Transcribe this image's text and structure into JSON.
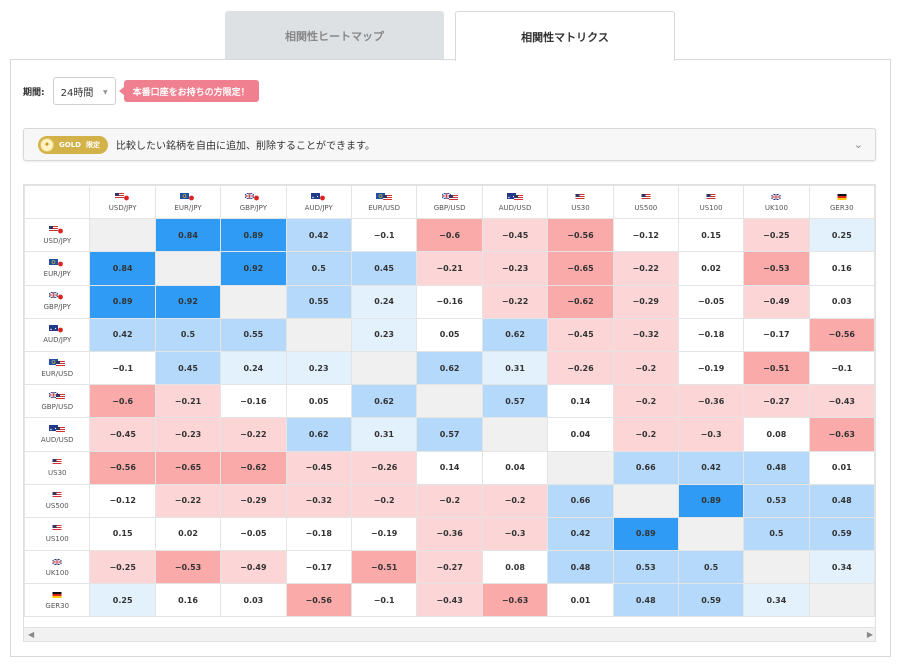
{
  "tabs": [
    {
      "label": "相関性ヒートマップ",
      "active": false
    },
    {
      "label": "相関性マトリクス",
      "active": true
    }
  ],
  "period": {
    "label": "期間:",
    "selected": "24時間",
    "promo": "本番口座をお持ちの方限定！"
  },
  "gold_bar": {
    "badge_word": "GOLD",
    "badge_limit": "限定",
    "text": "比較したい銘柄を自由に追加、削除することができます。",
    "icon": "chevron-down-icon"
  },
  "colors": {
    "strong_pos": "#2f9bf5",
    "mid_pos": "#b4d9fb",
    "light_pos": "#e3f1fd",
    "strong_neg": "#fbaaaa",
    "mid_neg": "#fcd6d6",
    "diag": "#f0f0f0",
    "neutral": "#ffffff"
  },
  "matrix": {
    "symbols": [
      {
        "code": "USD/JPY",
        "flag": "us-jp"
      },
      {
        "code": "EUR/JPY",
        "flag": "eu-jp"
      },
      {
        "code": "GBP/JPY",
        "flag": "gb-jp"
      },
      {
        "code": "AUD/JPY",
        "flag": "au-jp"
      },
      {
        "code": "EUR/USD",
        "flag": "eu-us"
      },
      {
        "code": "GBP/USD",
        "flag": "gb-us"
      },
      {
        "code": "AUD/USD",
        "flag": "au-us"
      },
      {
        "code": "US30",
        "flag": "us"
      },
      {
        "code": "US500",
        "flag": "us"
      },
      {
        "code": "US100",
        "flag": "us"
      },
      {
        "code": "UK100",
        "flag": "gb"
      },
      {
        "code": "GER30",
        "flag": "de"
      }
    ],
    "values": [
      [
        null,
        "0.84",
        "0.89",
        "0.42",
        "−0.1",
        "−0.6",
        "−0.45",
        "−0.56",
        "−0.12",
        "0.15",
        "−0.25",
        "0.25"
      ],
      [
        "0.84",
        null,
        "0.92",
        "0.5",
        "0.45",
        "−0.21",
        "−0.23",
        "−0.65",
        "−0.22",
        "0.02",
        "−0.53",
        "0.16"
      ],
      [
        "0.89",
        "0.92",
        null,
        "0.55",
        "0.24",
        "−0.16",
        "−0.22",
        "−0.62",
        "−0.29",
        "−0.05",
        "−0.49",
        "0.03"
      ],
      [
        "0.42",
        "0.5",
        "0.55",
        null,
        "0.23",
        "0.05",
        "0.62",
        "−0.45",
        "−0.32",
        "−0.18",
        "−0.17",
        "−0.56"
      ],
      [
        "−0.1",
        "0.45",
        "0.24",
        "0.23",
        null,
        "0.62",
        "0.31",
        "−0.26",
        "−0.2",
        "−0.19",
        "−0.51",
        "−0.1"
      ],
      [
        "−0.6",
        "−0.21",
        "−0.16",
        "0.05",
        "0.62",
        null,
        "0.57",
        "0.14",
        "−0.2",
        "−0.36",
        "−0.27",
        "−0.43"
      ],
      [
        "−0.45",
        "−0.23",
        "−0.22",
        "0.62",
        "0.31",
        "0.57",
        null,
        "0.04",
        "−0.2",
        "−0.3",
        "0.08",
        "−0.63"
      ],
      [
        "−0.56",
        "−0.65",
        "−0.62",
        "−0.45",
        "−0.26",
        "0.14",
        "0.04",
        null,
        "0.66",
        "0.42",
        "0.48",
        "0.01"
      ],
      [
        "−0.12",
        "−0.22",
        "−0.29",
        "−0.32",
        "−0.2",
        "−0.2",
        "−0.2",
        "0.66",
        null,
        "0.89",
        "0.53",
        "0.48"
      ],
      [
        "0.15",
        "0.02",
        "−0.05",
        "−0.18",
        "−0.19",
        "−0.36",
        "−0.3",
        "0.42",
        "0.89",
        null,
        "0.5",
        "0.59"
      ],
      [
        "−0.25",
        "−0.53",
        "−0.49",
        "−0.17",
        "−0.51",
        "−0.27",
        "0.08",
        "0.48",
        "0.53",
        "0.5",
        null,
        "0.34"
      ],
      [
        "0.25",
        "0.16",
        "0.03",
        "−0.56",
        "−0.1",
        "−0.43",
        "−0.63",
        "0.01",
        "0.48",
        "0.59",
        "0.34",
        null
      ]
    ]
  }
}
